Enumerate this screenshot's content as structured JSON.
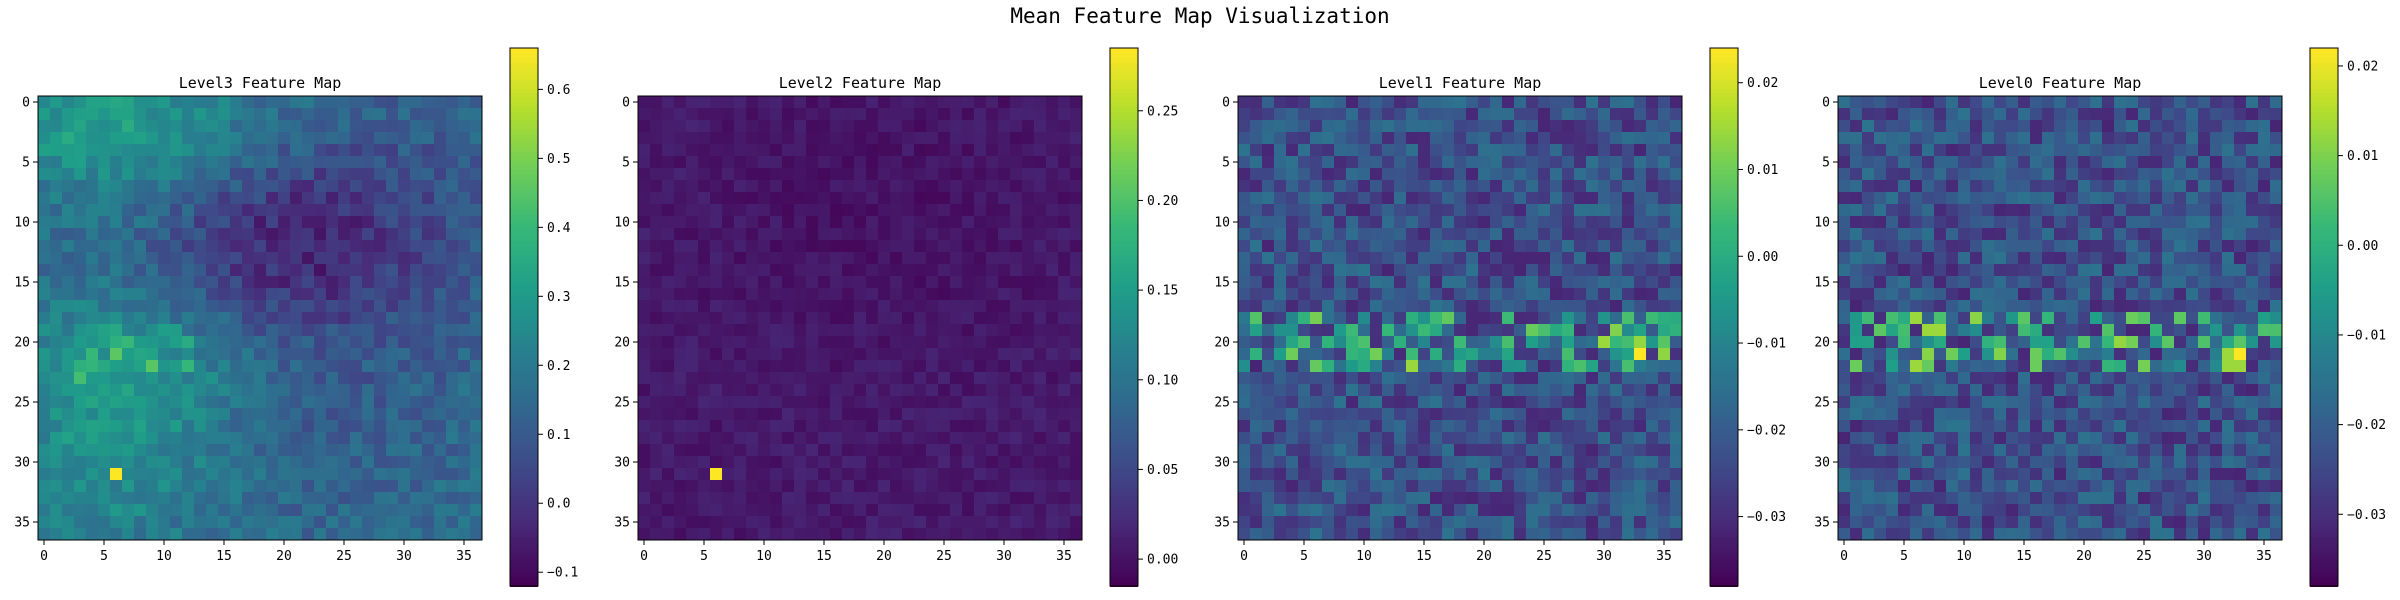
{
  "figure": {
    "title": "Mean Feature Map Visualization"
  },
  "chart_data": [
    {
      "type": "heatmap",
      "title": "Level3 Feature Map",
      "grid_size": [
        37,
        37
      ],
      "x_ticks": [
        0,
        5,
        10,
        15,
        20,
        25,
        30,
        35
      ],
      "y_ticks": [
        0,
        5,
        10,
        15,
        20,
        25,
        30,
        35
      ],
      "colormap": "viridis",
      "vmin": -0.12,
      "vmax": 0.66,
      "colorbar_ticks": [
        -0.1,
        0.0,
        0.1,
        0.2,
        0.3,
        0.4,
        0.5,
        0.6
      ],
      "colorbar_tick_labels": [
        "−0.1",
        "0.0",
        "0.1",
        "0.2",
        "0.3",
        "0.4",
        "0.5",
        "0.6"
      ],
      "pattern": "level3",
      "peak": {
        "x": 6,
        "y": 31,
        "value": 0.66
      }
    },
    {
      "type": "heatmap",
      "title": "Level2 Feature Map",
      "grid_size": [
        37,
        37
      ],
      "x_ticks": [
        0,
        5,
        10,
        15,
        20,
        25,
        30,
        35
      ],
      "y_ticks": [
        0,
        5,
        10,
        15,
        20,
        25,
        30,
        35
      ],
      "colormap": "viridis",
      "vmin": -0.015,
      "vmax": 0.285,
      "colorbar_ticks": [
        0.0,
        0.05,
        0.1,
        0.15,
        0.2,
        0.25
      ],
      "colorbar_tick_labels": [
        "0.00",
        "0.05",
        "0.10",
        "0.15",
        "0.20",
        "0.25"
      ],
      "pattern": "level2",
      "peak": {
        "x": 6,
        "y": 31,
        "value": 0.285
      }
    },
    {
      "type": "heatmap",
      "title": "Level1 Feature Map",
      "grid_size": [
        37,
        37
      ],
      "x_ticks": [
        0,
        5,
        10,
        15,
        20,
        25,
        30,
        35
      ],
      "y_ticks": [
        0,
        5,
        10,
        15,
        20,
        25,
        30,
        35
      ],
      "colormap": "viridis",
      "vmin": -0.038,
      "vmax": 0.024,
      "colorbar_ticks": [
        -0.03,
        -0.02,
        -0.01,
        0.0,
        0.01,
        0.02
      ],
      "colorbar_tick_labels": [
        "−0.03",
        "−0.02",
        "−0.01",
        "0.00",
        "0.01",
        "0.02"
      ],
      "pattern": "level1",
      "peak": {
        "x": 33,
        "y": 21,
        "value": 0.024
      }
    },
    {
      "type": "heatmap",
      "title": "Level0 Feature Map",
      "grid_size": [
        37,
        37
      ],
      "x_ticks": [
        0,
        5,
        10,
        15,
        20,
        25,
        30,
        35
      ],
      "y_ticks": [
        0,
        5,
        10,
        15,
        20,
        25,
        30,
        35
      ],
      "colormap": "viridis",
      "vmin": -0.038,
      "vmax": 0.022,
      "colorbar_ticks": [
        -0.03,
        -0.02,
        -0.01,
        0.0,
        0.01,
        0.02
      ],
      "colorbar_tick_labels": [
        "−0.03",
        "−0.02",
        "−0.01",
        "0.00",
        "0.01",
        "0.02"
      ],
      "pattern": "level1",
      "peak": {
        "x": 33,
        "y": 21,
        "value": 0.022
      }
    }
  ]
}
